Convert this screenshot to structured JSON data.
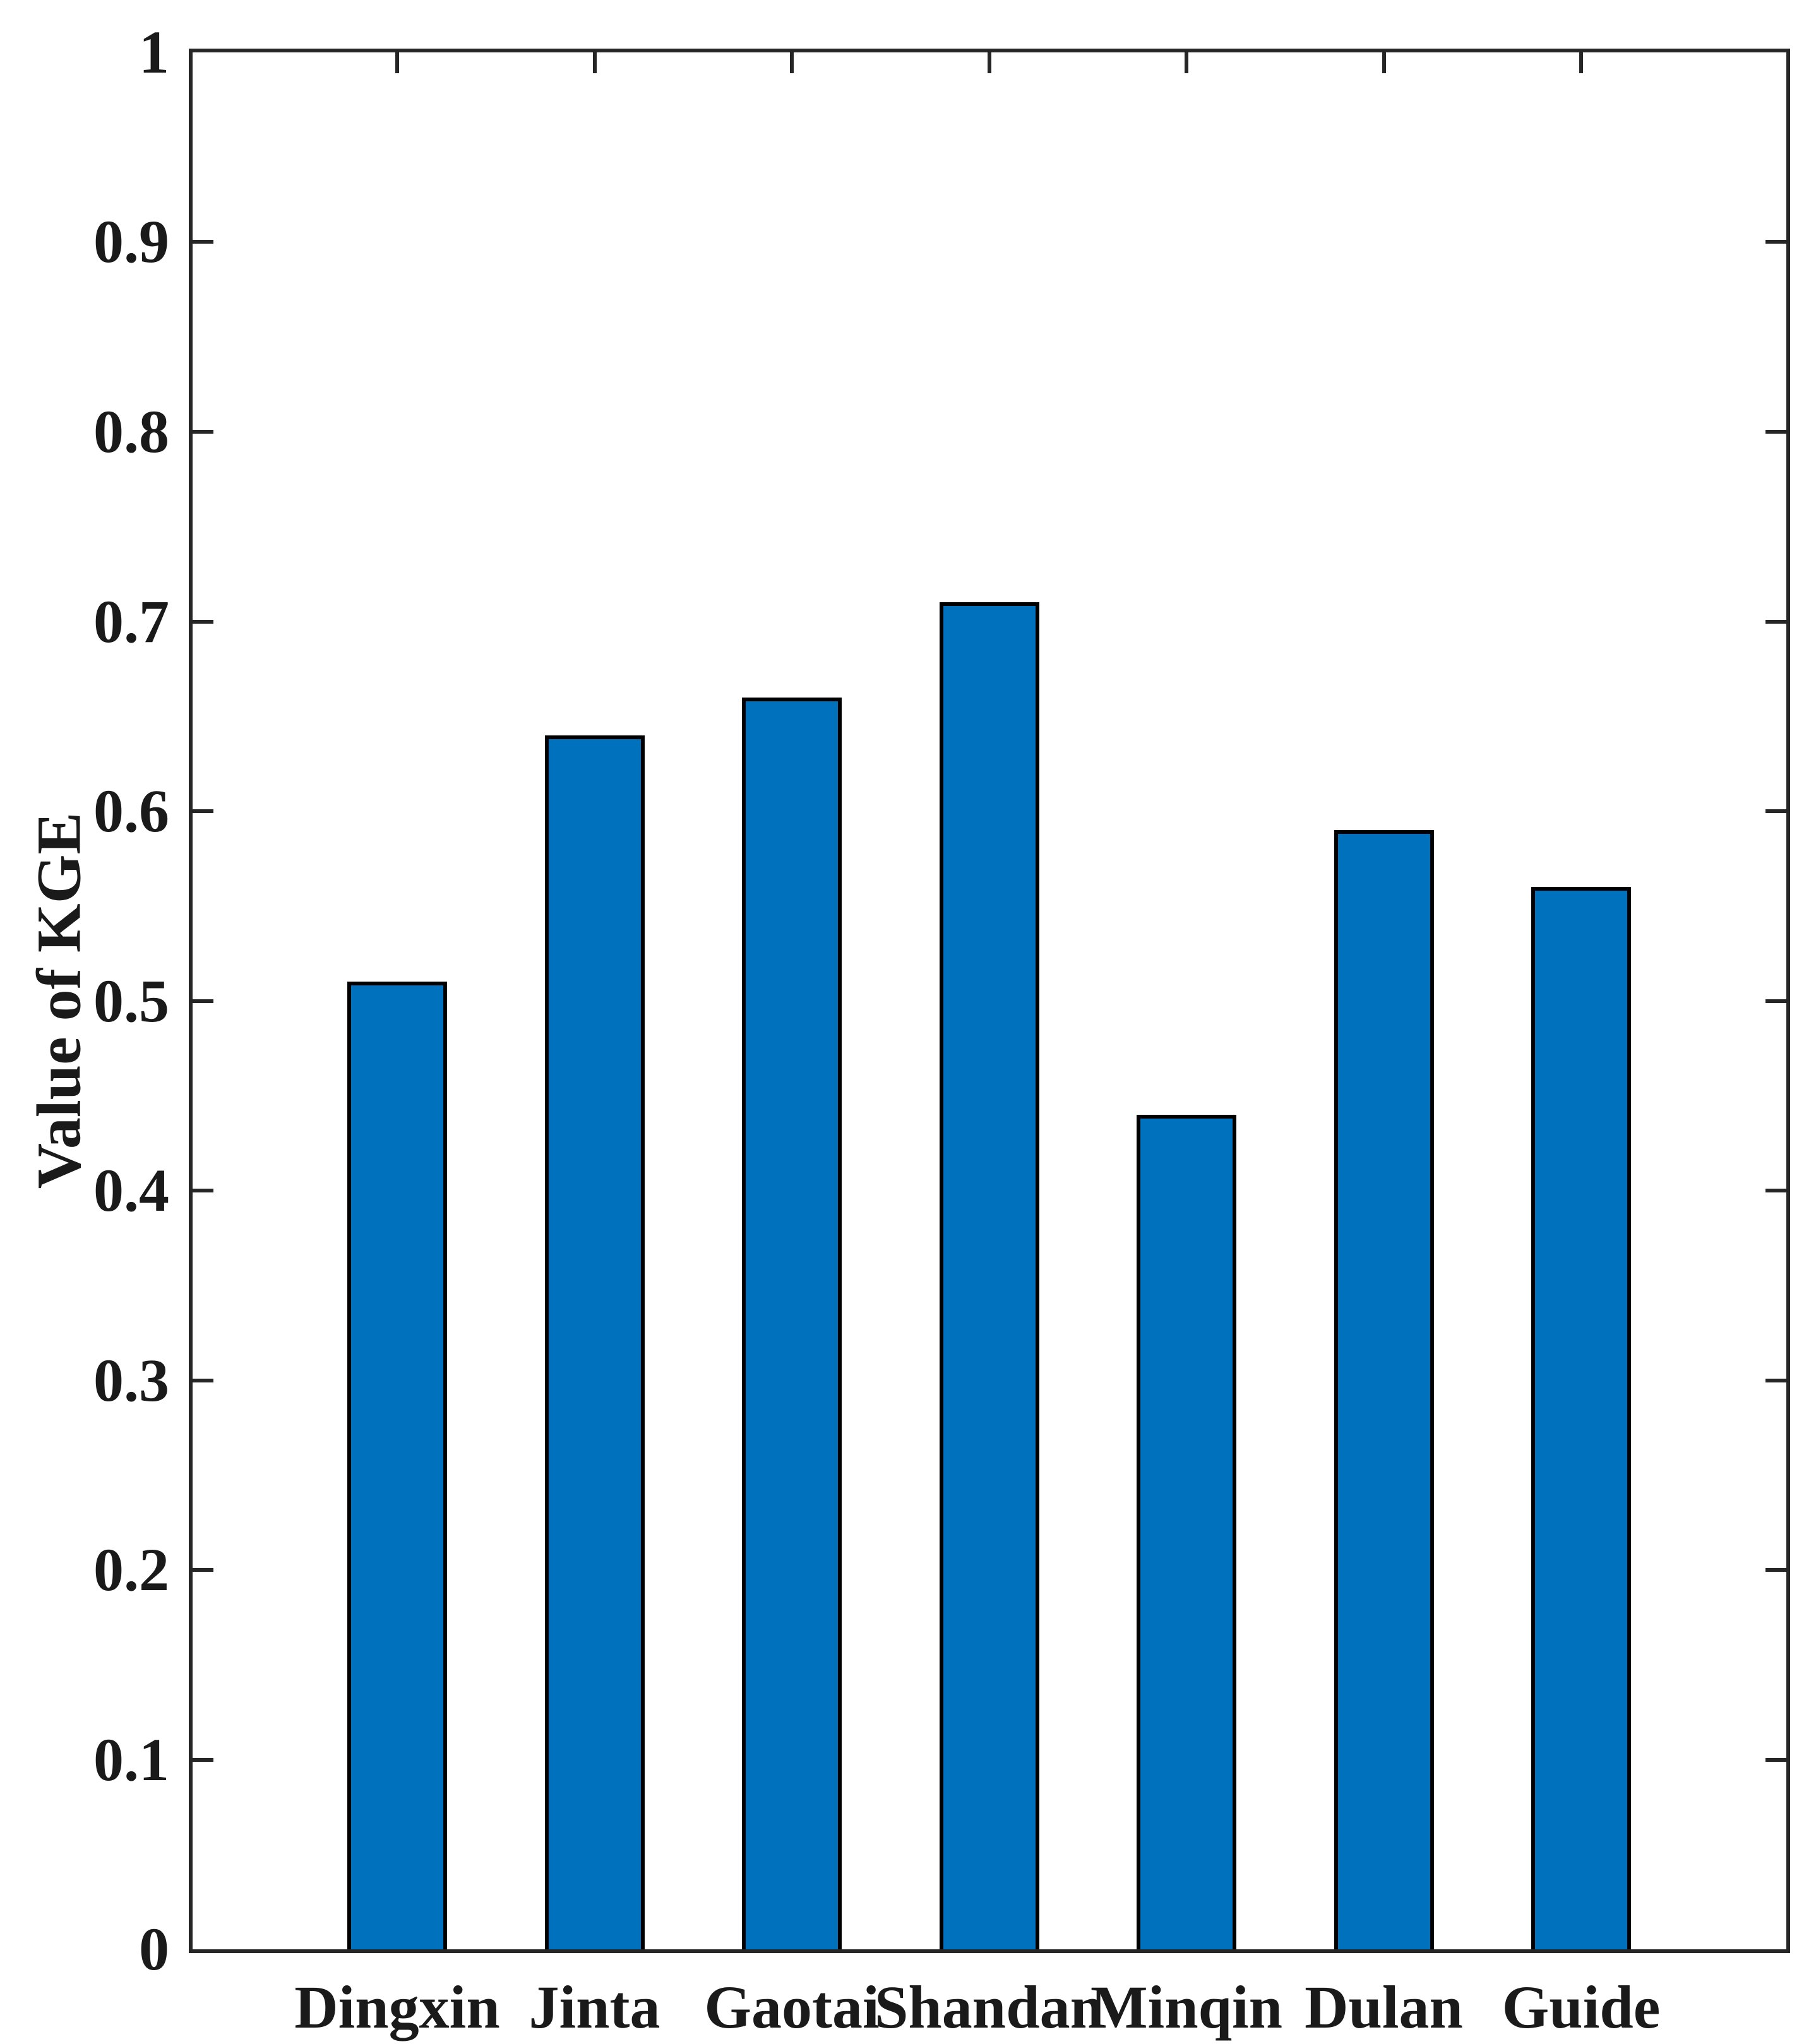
{
  "chart_data": {
    "type": "bar",
    "title": "",
    "xlabel": "",
    "ylabel": "Value of KGE",
    "categories": [
      "Dingxin",
      "Jinta",
      "Gaotai",
      "Shandan",
      "Minqin",
      "Dulan",
      "Guide"
    ],
    "values": [
      0.51,
      0.64,
      0.66,
      0.71,
      0.44,
      0.59,
      0.56
    ],
    "series": [
      {
        "name": "KGE",
        "values": [
          0.51,
          0.64,
          0.66,
          0.71,
          0.44,
          0.59,
          0.56
        ]
      }
    ],
    "ylim": [
      0,
      1
    ],
    "yticks": [
      0,
      0.1,
      0.2,
      0.3,
      0.4,
      0.5,
      0.6,
      0.7,
      0.8,
      0.9,
      1
    ],
    "ytick_labels": [
      "0",
      "0.1",
      "0.2",
      "0.3",
      "0.4",
      "0.5",
      "0.6",
      "0.7",
      "0.8",
      "0.9",
      "1"
    ],
    "grid": false,
    "legend": "none",
    "bar_color": "#0072BD",
    "bar_edge_color": "#000000",
    "axis_color": "#262626",
    "tick_direction": "in",
    "box": true
  }
}
